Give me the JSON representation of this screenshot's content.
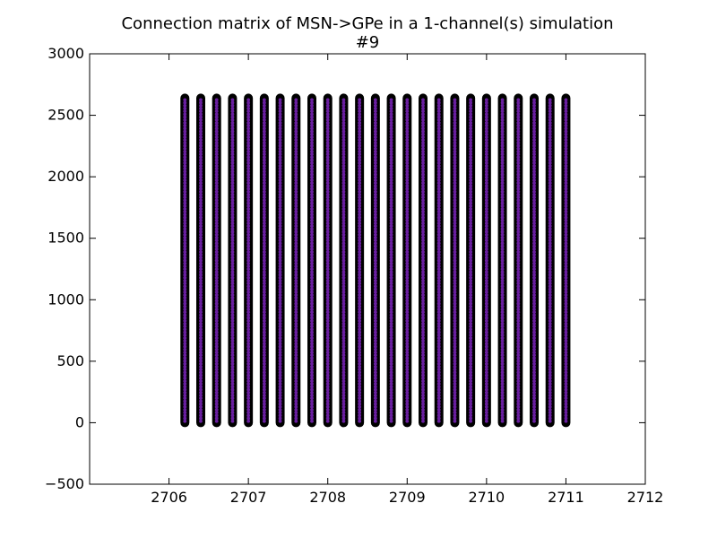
{
  "chart_data": {
    "type": "scatter",
    "title": "Connection matrix of MSN->GPe in a 1-channel(s) simulation",
    "subtitle": "#9",
    "xlabel": "",
    "ylabel": "",
    "xlim": [
      2705,
      2712
    ],
    "ylim": [
      -500,
      3000
    ],
    "xticks": [
      "2706",
      "2707",
      "2708",
      "2709",
      "2710",
      "2711",
      "2712"
    ],
    "yticks": [
      "−500",
      "0",
      "500",
      "1000",
      "1500",
      "2000",
      "2500",
      "3000"
    ],
    "grid": false,
    "legend": "none",
    "columns_x": [
      2706.2,
      2706.4,
      2706.6,
      2706.8,
      2707.0,
      2707.2,
      2707.4,
      2707.6,
      2707.8,
      2708.0,
      2708.2,
      2708.4,
      2708.6,
      2708.8,
      2709.0,
      2709.2,
      2709.4,
      2709.6,
      2709.8,
      2710.0,
      2710.2,
      2710.4,
      2710.6,
      2710.8,
      2711.0
    ],
    "y_range": [
      0,
      2640
    ],
    "marker_fill": "#6a1fa0",
    "marker_edge": "#000000"
  }
}
